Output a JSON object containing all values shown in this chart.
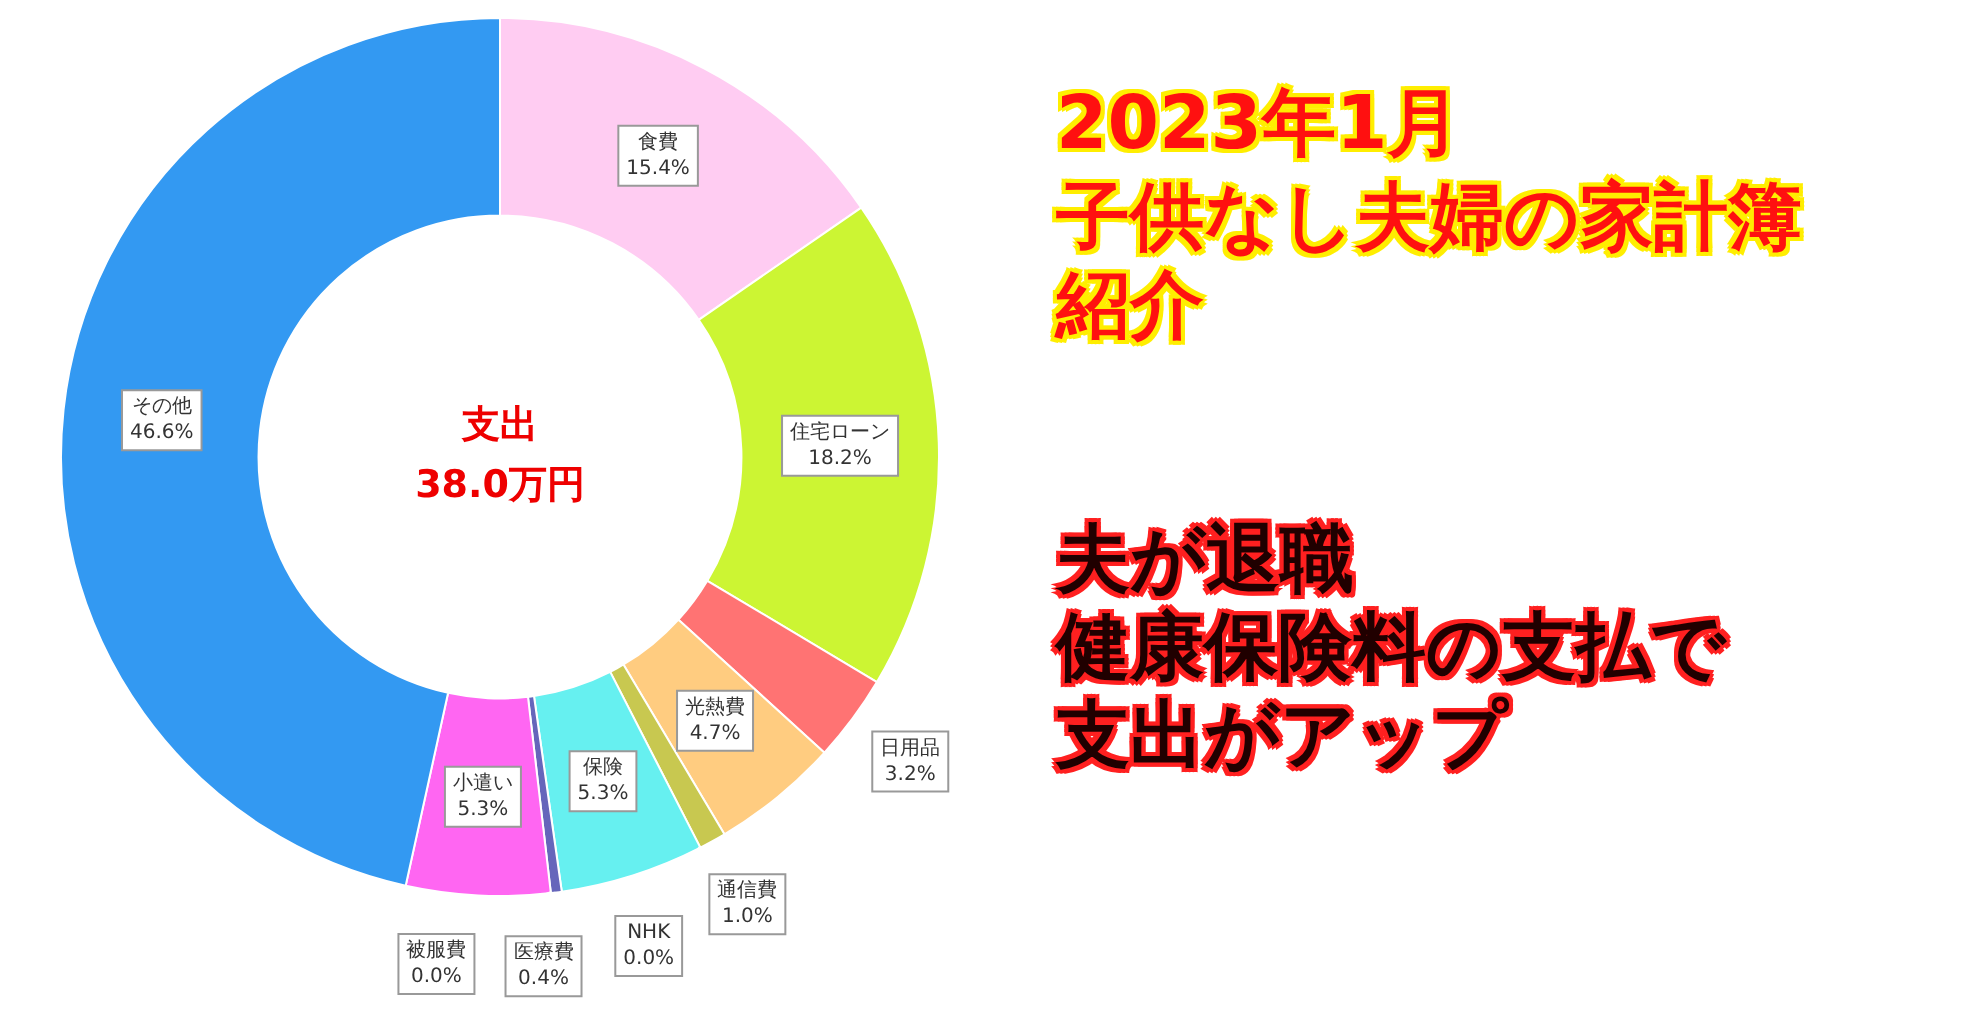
{
  "chart_data": {
    "type": "donut",
    "title": "2023年1月",
    "subtitle": "子供なし夫婦の家計簿紹介",
    "categories": [
      "食費",
      "住宅ローン",
      "日用品",
      "光熱費",
      "通信費",
      "NHK",
      "保険",
      "医療費",
      "被服費",
      "小遣い",
      "その他"
    ],
    "values": [
      15.4,
      18.2,
      3.2,
      4.7,
      1.0,
      0.0,
      5.3,
      0.4,
      0.0,
      5.3,
      46.6
    ],
    "value_labels": [
      "15.4%",
      "18.2%",
      "3.2%",
      "4.7%",
      "1.0%",
      "0.0%",
      "5.3%",
      "0.4%",
      "0.0%",
      "5.3%",
      "46.6%"
    ],
    "colors": [
      "#ffccf2",
      "#ccf533",
      "#ff7373",
      "#ffcc80",
      "#c8c850",
      "#9999cc",
      "#66f0f0",
      "#6666bb",
      "#ff99ff",
      "#ff66f2",
      "#3399f2"
    ],
    "annotations": [
      "支出",
      "38.0万円",
      "夫が退職",
      "健康保険料の支払で支出がアップ"
    ],
    "legend": false
  }
}
